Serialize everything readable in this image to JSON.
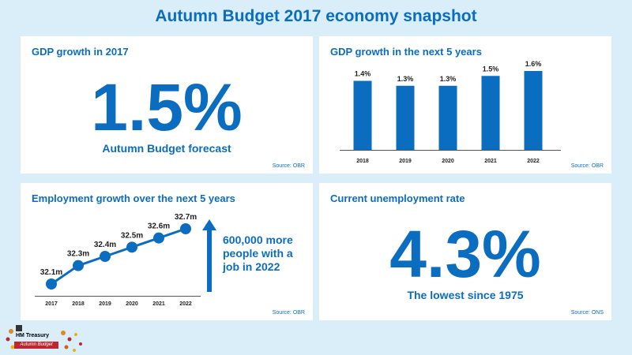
{
  "title": "Autumn Budget 2017 economy snapshot",
  "panels": {
    "gdp_2017": {
      "title": "GDP growth in 2017",
      "value": "1.5%",
      "caption": "Autumn Budget forecast",
      "source": "Source: OBR"
    },
    "gdp_5y": {
      "title": "GDP growth in the next 5 years",
      "source": "Source: OBR"
    },
    "employment": {
      "title": "Employment growth over the next 5 years",
      "arrow_text": [
        "600,000 more",
        "people with a",
        "job in 2022"
      ],
      "source": "Source: OBR"
    },
    "unemployment": {
      "title": "Current unemployment rate",
      "value": "4.3%",
      "caption": "The lowest since 1975",
      "source": "Source: ONS"
    }
  },
  "logo": {
    "line1": "HM Treasury",
    "line2": "Autumn Budget"
  },
  "colors": {
    "accent": "#0b6dc0",
    "background": "#daeef9",
    "logo_red": "#c0262d"
  },
  "chart_data": [
    {
      "type": "bar",
      "categories": [
        "2018",
        "2019",
        "2020",
        "2021",
        "2022"
      ],
      "values": [
        1.4,
        1.3,
        1.3,
        1.5,
        1.6
      ],
      "labels": [
        "1.4%",
        "1.3%",
        "1.3%",
        "1.5%",
        "1.6%"
      ],
      "title": "GDP growth in the next 5 years",
      "ylim": [
        0,
        1.6
      ],
      "grid": false
    },
    {
      "type": "line",
      "x": [
        "2017",
        "2018",
        "2019",
        "2020",
        "2021",
        "2022"
      ],
      "values": [
        32.1,
        32.3,
        32.4,
        32.5,
        32.6,
        32.7
      ],
      "labels": [
        "32.1m",
        "32.3m",
        "32.4m",
        "32.5m",
        "32.6m",
        "32.7m"
      ],
      "title": "Employment growth over the next 5 years",
      "ylim": [
        32.1,
        32.7
      ],
      "grid": false
    }
  ]
}
